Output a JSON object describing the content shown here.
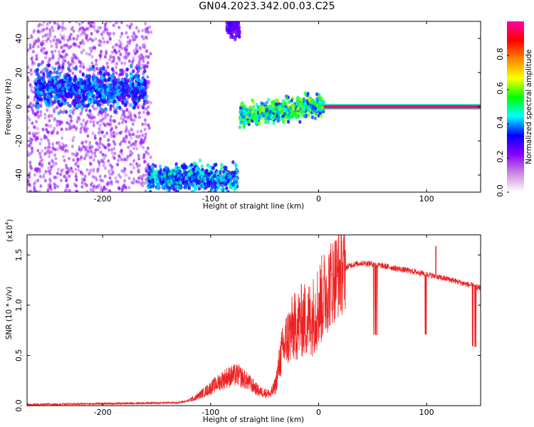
{
  "title": "GN04.2023.342.00.03.C25",
  "colors": {
    "snr_line": "#ee2222",
    "spectrum_cmap": [
      "#cc88dd",
      "#8800ff",
      "#0000ff",
      "#00ffff",
      "#00ff00",
      "#ffff00",
      "#ff8800",
      "#ff0000",
      "#ff00aa"
    ]
  },
  "chart_data": [
    {
      "type": "heatmap",
      "xlabel": "Height of straight line (km)",
      "ylabel": "Frequency (Hz)",
      "xlim": [
        -270,
        150
      ],
      "ylim": [
        -50,
        50
      ],
      "xticks": [
        -200,
        -100,
        0,
        100
      ],
      "yticks": [
        -40,
        -20,
        0,
        20,
        40
      ],
      "colorbar": {
        "label": "Normalized spectral amplitude",
        "range": [
          0,
          1
        ],
        "ticks": [
          "0.0",
          "0.2",
          "0.4",
          "0.6",
          "0.8"
        ]
      },
      "features": [
        {
          "x_range": [
            -270,
            -155
          ],
          "freq_range": [
            -50,
            50
          ],
          "amplitude": 0.05,
          "kind": "sparse scatter"
        },
        {
          "x_range": [
            -262,
            -160
          ],
          "freq_center": 10,
          "freq_width": 14,
          "amplitude": 0.25,
          "kind": "band"
        },
        {
          "x_range": [
            -158,
            -75
          ],
          "freq_center": -42,
          "freq_width": 10,
          "amplitude": 0.3,
          "kind": "band"
        },
        {
          "x_range": [
            -85,
            -73
          ],
          "freq_center": 46,
          "freq_width": 8,
          "amplitude": 0.15,
          "kind": "band"
        },
        {
          "x_range": [
            -73,
            5
          ],
          "freq_center_start": -5,
          "freq_center_end": 1,
          "freq_width": 8,
          "amplitude": 0.4,
          "kind": "band"
        },
        {
          "x_range": [
            5,
            150
          ],
          "freq_center": 0,
          "freq_width": 2,
          "amplitude": 0.95,
          "kind": "line"
        }
      ]
    },
    {
      "type": "line",
      "xlabel": "Height of straight line (km)",
      "ylabel": "SNR (10 * v/v)",
      "y_multiplier": "(x10",
      "y_multiplier_exp": "4",
      "xlim": [
        -270,
        150
      ],
      "ylim": [
        0,
        1.7
      ],
      "xticks": [
        -200,
        -100,
        0,
        100
      ],
      "yticks": [
        "0.0",
        "0.5",
        "1.0",
        "1.5"
      ],
      "series": [
        {
          "x": [
            -270,
            -240,
            -200,
            -160,
            -130,
            -115,
            -105,
            -95,
            -85,
            -75,
            -65,
            -55,
            -45,
            -40,
            -35,
            -30,
            -25,
            -20,
            -15,
            -10,
            -5,
            0,
            5,
            10,
            15,
            20,
            25,
            30,
            40,
            50,
            60,
            70,
            80,
            90,
            100,
            110,
            120,
            130,
            140,
            150
          ],
          "y": [
            0.01,
            0.015,
            0.02,
            0.025,
            0.03,
            0.06,
            0.12,
            0.18,
            0.24,
            0.26,
            0.2,
            0.12,
            0.1,
            0.2,
            0.5,
            0.65,
            0.75,
            0.8,
            0.85,
            0.85,
            0.9,
            1.0,
            1.1,
            1.2,
            1.28,
            1.33,
            1.37,
            1.4,
            1.42,
            1.41,
            1.39,
            1.37,
            1.35,
            1.33,
            1.31,
            1.28,
            1.26,
            1.23,
            1.2,
            1.17
          ]
        }
      ]
    }
  ]
}
